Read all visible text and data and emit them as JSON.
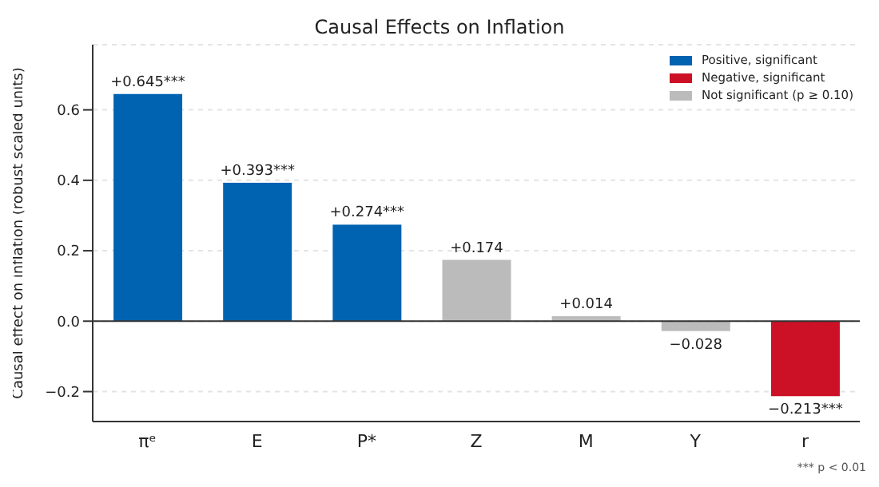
{
  "chart_data": {
    "type": "bar",
    "title": "Causal Effects on Inflation",
    "ylabel": "Causal effect on inflation (robust scaled units)",
    "categories": [
      "πᵉ",
      "E",
      "P*",
      "Z",
      "M",
      "Y",
      "r"
    ],
    "stacked": true,
    "series": [
      {
        "name": "Positive, significant",
        "color": "#0063b1",
        "values": [
          0.645,
          0.393,
          0.274,
          null,
          null,
          null,
          null
        ],
        "value_labels": [
          "+0.645***",
          "+0.393***",
          "+0.274***",
          null,
          null,
          null,
          null
        ]
      },
      {
        "name": "Negative, significant",
        "color": "#cc1126",
        "values": [
          null,
          null,
          null,
          null,
          null,
          null,
          -0.213
        ],
        "value_labels": [
          null,
          null,
          null,
          null,
          null,
          null,
          "−0.213***"
        ]
      },
      {
        "name": "Not significant (p ≥ 0.10)",
        "color": "#bbbbbb",
        "values": [
          null,
          null,
          null,
          0.174,
          0.014,
          -0.028,
          null
        ],
        "value_labels": [
          null,
          null,
          null,
          "+0.174",
          "+0.014",
          "−0.028",
          null
        ]
      }
    ],
    "ylim": [
      -0.285,
      0.785
    ],
    "yticks": [
      {
        "value": -0.2,
        "label": "−0.2"
      },
      {
        "value": 0,
        "label": "0.0"
      },
      {
        "value": 0.2,
        "label": "0.2"
      },
      {
        "value": 0.4,
        "label": "0.4"
      },
      {
        "value": 0.6,
        "label": "0.6"
      }
    ],
    "ref_lines": [
      {
        "axis": "y",
        "value": 0,
        "color": "#333333"
      }
    ],
    "grid": "y",
    "legend": "top right",
    "annotations": [
      "*** p < 0.01"
    ]
  }
}
